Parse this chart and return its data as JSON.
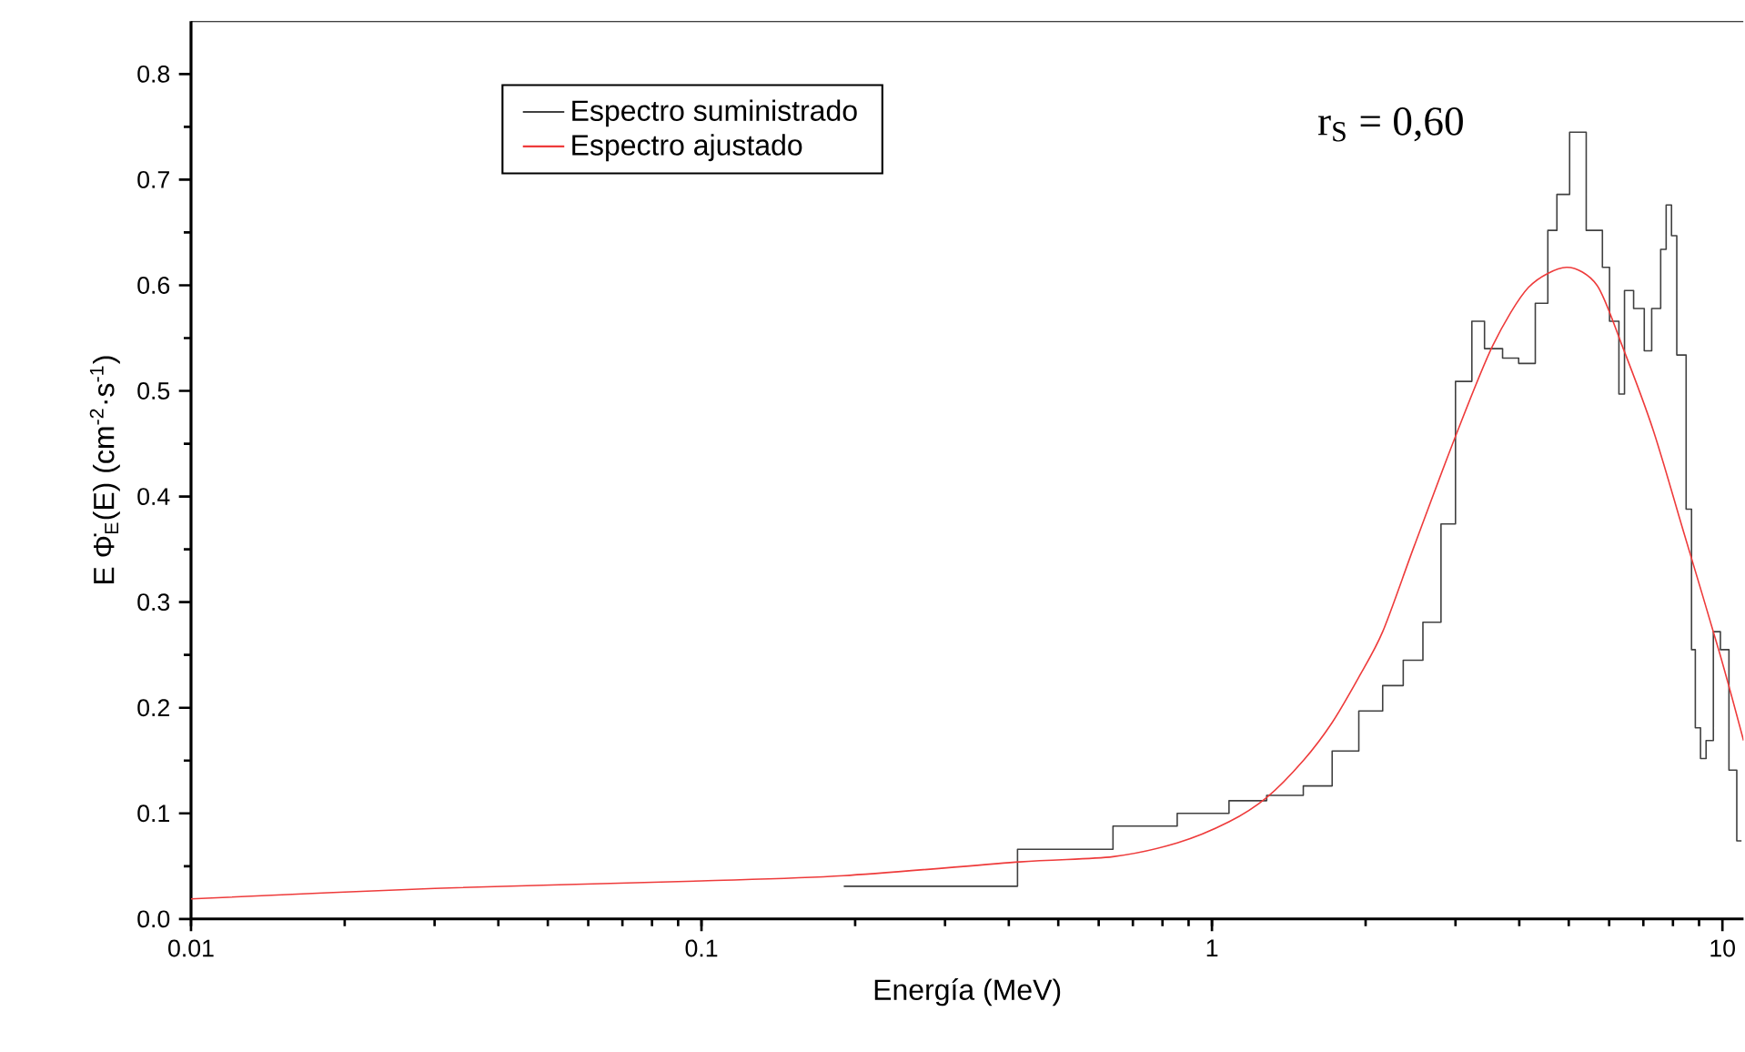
{
  "chart_data": {
    "type": "line",
    "xlabel": "Energía (MeV)",
    "ylabel": "E Φ̇$_{E}$(E) (cm$^{-2}$·s$^{-1}$)",
    "log": "x",
    "xlim": [
      0.01,
      11
    ],
    "ylim": [
      0,
      0.85
    ],
    "xticks": [
      0.01,
      0.1,
      1,
      10
    ],
    "yticks": [
      {
        "value": 0,
        "label": "0.0"
      },
      0.1,
      0.2,
      0.3,
      0.4,
      0.5,
      0.6,
      0.7,
      0.8
    ],
    "legend": "top",
    "grid": false,
    "marker": "none",
    "annotations": [
      "r$_{S}$ = 0,60"
    ],
    "series": [
      {
        "name": "Espectro suministrado",
        "type": "step",
        "color": "#404040",
        "x": [
          0.19,
          0.416,
          0.64,
          0.855,
          1.08,
          1.28,
          1.51,
          1.72,
          1.94,
          2.16,
          2.37,
          2.59,
          2.81,
          3.0,
          3.23,
          3.42,
          3.71,
          3.99,
          4.3,
          4.55,
          4.74,
          5.02,
          5.41,
          5.82,
          6.01,
          6.27,
          6.43,
          6.7,
          7.03,
          7.27,
          7.57,
          7.76,
          7.95,
          8.14,
          8.49,
          8.7,
          8.85,
          9.06,
          9.29,
          9.6,
          9.91,
          10.3,
          10.67,
          10.9
        ],
        "values": [
          0.031,
          0.066,
          0.088,
          0.1,
          0.112,
          0.117,
          0.126,
          0.159,
          0.197,
          0.221,
          0.245,
          0.281,
          0.374,
          0.509,
          0.566,
          0.54,
          0.531,
          0.526,
          0.583,
          0.652,
          0.686,
          0.745,
          0.652,
          0.617,
          0.566,
          0.497,
          0.595,
          0.578,
          0.538,
          0.578,
          0.634,
          0.676,
          0.647,
          0.534,
          0.388,
          0.255,
          0.181,
          0.152,
          0.169,
          0.272,
          0.255,
          0.141,
          0.074,
          0.074
        ]
      },
      {
        "name": "Espectro ajustado",
        "color": "#ee3b3b",
        "x": [
          0.01,
          0.03,
          0.1,
          0.19,
          0.42,
          0.64,
          0.855,
          1.08,
          1.28,
          1.51,
          1.72,
          1.94,
          2.16,
          2.49,
          3.0,
          3.55,
          4.17,
          4.95,
          5.68,
          6.36,
          7.33,
          8.4,
          9.9,
          11
        ],
        "values": [
          0.019,
          0.029,
          0.036,
          0.041,
          0.054,
          0.059,
          0.072,
          0.092,
          0.115,
          0.15,
          0.186,
          0.229,
          0.272,
          0.353,
          0.457,
          0.543,
          0.598,
          0.617,
          0.6,
          0.543,
          0.462,
          0.366,
          0.25,
          0.169
        ]
      }
    ]
  }
}
